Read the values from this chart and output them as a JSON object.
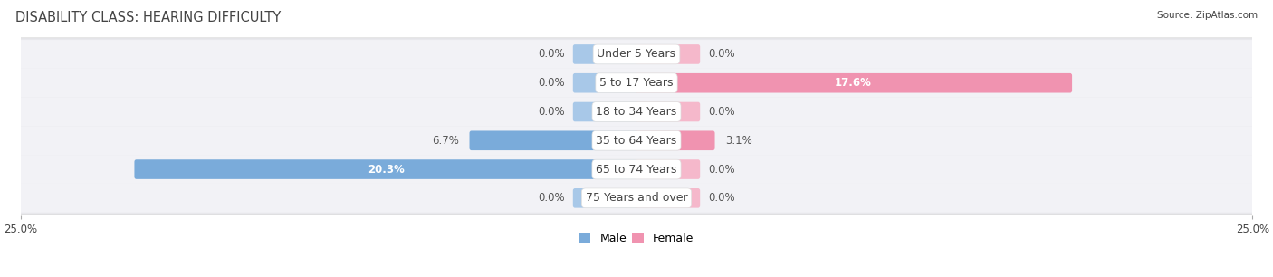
{
  "title": "DISABILITY CLASS: HEARING DIFFICULTY",
  "source": "Source: ZipAtlas.com",
  "categories": [
    "Under 5 Years",
    "5 to 17 Years",
    "18 to 34 Years",
    "35 to 64 Years",
    "65 to 74 Years",
    "75 Years and over"
  ],
  "male_values": [
    0.0,
    0.0,
    0.0,
    6.7,
    20.3,
    0.0
  ],
  "female_values": [
    0.0,
    17.6,
    0.0,
    3.1,
    0.0,
    0.0
  ],
  "male_color": "#7aabda",
  "female_color": "#f093b0",
  "male_color_light": "#a8c8e8",
  "female_color_light": "#f5b8cb",
  "row_bg_color": "#e8e8ec",
  "row_inner_color": "#f2f2f6",
  "axis_limit": 25.0,
  "bar_height": 0.52,
  "min_bar_width": 2.5,
  "title_fontsize": 10.5,
  "label_fontsize": 8.5,
  "cat_fontsize": 9,
  "tick_fontsize": 8.5,
  "text_color": "#444444",
  "value_text_color_inside": "#ffffff",
  "value_text_color_outside": "#555555"
}
